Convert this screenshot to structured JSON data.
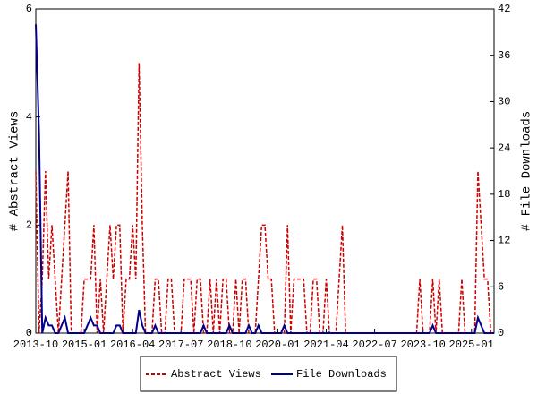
{
  "chart_data": {
    "type": "line",
    "y_label": "# Abstract Views",
    "y2_label": "# File Downloads",
    "x": [
      "2013-10",
      "2013-11",
      "2013-12",
      "2014-01",
      "2014-02",
      "2014-03",
      "2014-04",
      "2014-05",
      "2014-06",
      "2014-07",
      "2014-08",
      "2014-09",
      "2014-10",
      "2014-11",
      "2014-12",
      "2015-01",
      "2015-02",
      "2015-03",
      "2015-04",
      "2015-05",
      "2015-06",
      "2015-07",
      "2015-08",
      "2015-09",
      "2015-10",
      "2015-11",
      "2015-12",
      "2016-01",
      "2016-02",
      "2016-03",
      "2016-04",
      "2016-05",
      "2016-06",
      "2016-07",
      "2016-08",
      "2016-09",
      "2016-10",
      "2016-11",
      "2016-12",
      "2017-01",
      "2017-02",
      "2017-03",
      "2017-04",
      "2017-05",
      "2017-06",
      "2017-07",
      "2017-08",
      "2017-09",
      "2017-10",
      "2017-11",
      "2017-12",
      "2018-01",
      "2018-02",
      "2018-03",
      "2018-04",
      "2018-05",
      "2018-06",
      "2018-07",
      "2018-08",
      "2018-09",
      "2018-10",
      "2018-11",
      "2018-12",
      "2019-01",
      "2019-02",
      "2019-03",
      "2019-04",
      "2019-05",
      "2019-06",
      "2019-07",
      "2019-08",
      "2019-09",
      "2019-10",
      "2019-11",
      "2019-12",
      "2020-01",
      "2020-02",
      "2020-03",
      "2020-04",
      "2020-05",
      "2020-06",
      "2020-07",
      "2020-08",
      "2020-09",
      "2020-10",
      "2020-11",
      "2020-12",
      "2021-01",
      "2021-02",
      "2021-03",
      "2021-04",
      "2021-05",
      "2021-06",
      "2021-07",
      "2021-08",
      "2021-09",
      "2021-10",
      "2021-11",
      "2021-12",
      "2022-01",
      "2022-02",
      "2022-03",
      "2022-04",
      "2022-05",
      "2022-06",
      "2022-07",
      "2022-08",
      "2022-09",
      "2022-10",
      "2022-11",
      "2022-12",
      "2023-01",
      "2023-02",
      "2023-03",
      "2023-04",
      "2023-05",
      "2023-06",
      "2023-07",
      "2023-08",
      "2023-09",
      "2023-10",
      "2023-11",
      "2023-12",
      "2024-01",
      "2024-02",
      "2024-03",
      "2024-04",
      "2024-05",
      "2024-06",
      "2024-07",
      "2024-08",
      "2024-09",
      "2024-10",
      "2024-11",
      "2024-12",
      "2025-01",
      "2025-02",
      "2025-03",
      "2025-04",
      "2025-05",
      "2025-06",
      "2025-07",
      "2025-08"
    ],
    "xlim": [
      "2013-10",
      "2025-08"
    ],
    "xticks": [
      "2013-10",
      "2015-01",
      "2016-04",
      "2017-07",
      "2018-10",
      "2020-01",
      "2021-04",
      "2022-07",
      "2023-10",
      "2025-01"
    ],
    "ylim": [
      0,
      6
    ],
    "yticks": [
      0,
      2,
      4,
      6
    ],
    "y2lim": [
      0,
      42
    ],
    "y2ticks": [
      0,
      6,
      12,
      18,
      24,
      30,
      36,
      42
    ],
    "series": [
      {
        "name": "Abstract Views",
        "color": "#cc0000",
        "dashed": true,
        "values": [
          3,
          0,
          1,
          3,
          1,
          2,
          1,
          0,
          1,
          2,
          3,
          0,
          0,
          0,
          0,
          1,
          1,
          1,
          2,
          0,
          1,
          0,
          1,
          2,
          1,
          2,
          2,
          0,
          1,
          1,
          2,
          1,
          5,
          2,
          0,
          0,
          0,
          1,
          1,
          0,
          0,
          1,
          1,
          0,
          0,
          0,
          1,
          1,
          1,
          0,
          1,
          1,
          0,
          0,
          1,
          0,
          1,
          0,
          1,
          1,
          0,
          0,
          1,
          0,
          1,
          1,
          0,
          0,
          0,
          1,
          2,
          2,
          1,
          1,
          0,
          0,
          0,
          0,
          2,
          0,
          1,
          1,
          1,
          1,
          0,
          0,
          1,
          1,
          0,
          0,
          1,
          0,
          0,
          0,
          1,
          2,
          0,
          0,
          0,
          0,
          0,
          0,
          0,
          0,
          0,
          0,
          0,
          0,
          0,
          0,
          0,
          0,
          0,
          0,
          0,
          0,
          0,
          0,
          0,
          1,
          0,
          0,
          0,
          1,
          0,
          1,
          0,
          0,
          0,
          0,
          0,
          0,
          1,
          0,
          0,
          0,
          0,
          3,
          2,
          1,
          1,
          0,
          0
        ]
      },
      {
        "name": "File Downloads",
        "color": "#00008b",
        "dashed": false,
        "axis": "y2",
        "values": [
          40,
          26,
          0,
          2,
          1,
          1,
          0,
          0,
          1,
          2,
          0,
          0,
          0,
          0,
          0,
          0,
          1,
          2,
          1,
          1,
          0,
          0,
          0,
          0,
          0,
          1,
          1,
          0,
          0,
          0,
          0,
          0,
          3,
          1,
          0,
          0,
          0,
          1,
          0,
          0,
          0,
          0,
          0,
          0,
          0,
          0,
          0,
          0,
          0,
          0,
          0,
          0,
          1,
          0,
          0,
          0,
          0,
          0,
          0,
          0,
          1,
          0,
          0,
          0,
          0,
          0,
          1,
          0,
          0,
          1,
          0,
          0,
          0,
          0,
          0,
          0,
          0,
          1,
          0,
          0,
          0,
          0,
          0,
          0,
          0,
          0,
          0,
          0,
          0,
          0,
          0,
          0,
          0,
          0,
          0,
          0,
          0,
          0,
          0,
          0,
          0,
          0,
          0,
          0,
          0,
          0,
          0,
          0,
          0,
          0,
          0,
          0,
          0,
          0,
          0,
          0,
          0,
          0,
          0,
          0,
          0,
          0,
          0,
          1,
          0,
          0,
          0,
          0,
          0,
          0,
          0,
          0,
          0,
          0,
          0,
          0,
          0,
          2,
          1,
          0,
          0,
          0,
          0
        ]
      }
    ]
  }
}
